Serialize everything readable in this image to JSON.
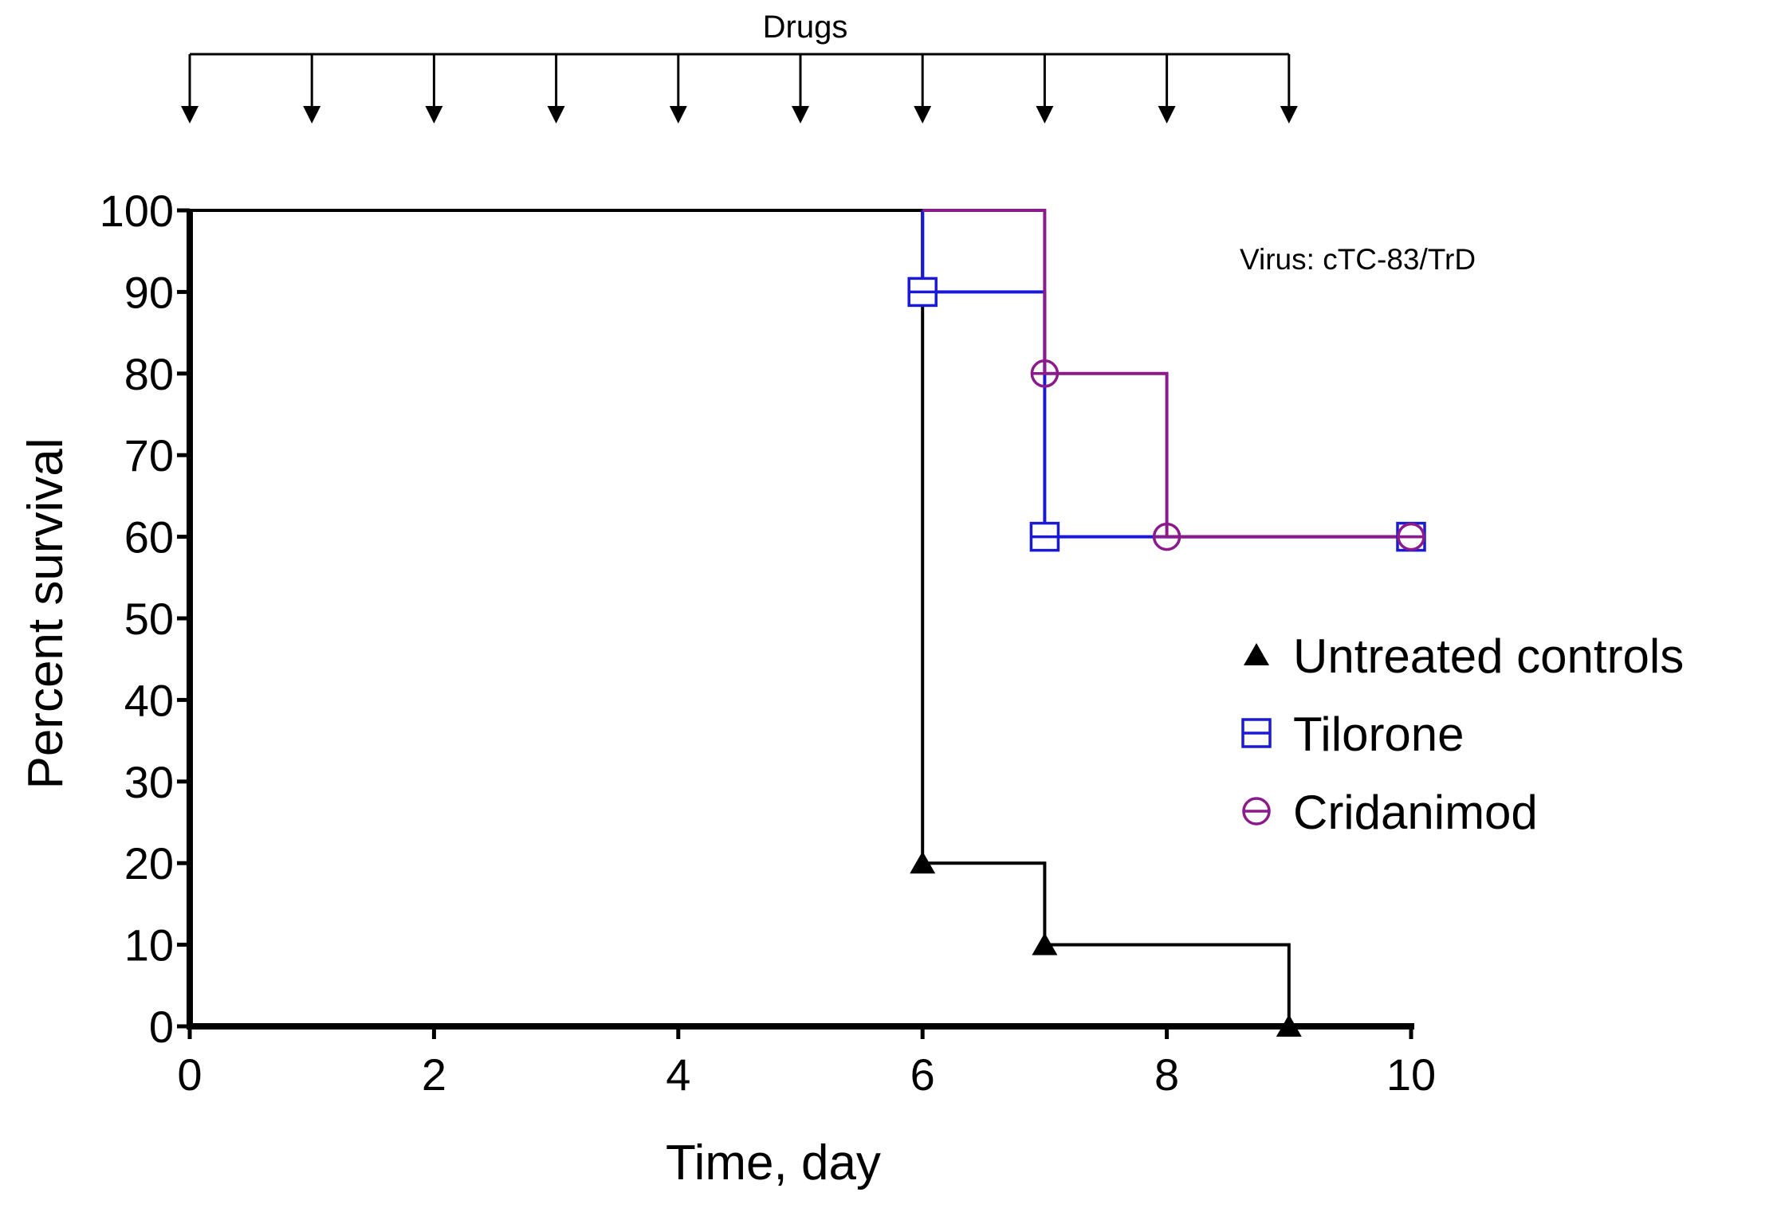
{
  "chart_data": {
    "type": "line",
    "subtype": "kaplan-meier-step",
    "title": "",
    "xlabel": "Time, day",
    "ylabel": "Percent survival",
    "xlim": [
      0,
      10
    ],
    "ylim": [
      0,
      100
    ],
    "x_ticks": [
      0,
      2,
      4,
      6,
      8,
      10
    ],
    "y_ticks": [
      0,
      10,
      20,
      30,
      40,
      50,
      60,
      70,
      80,
      90,
      100
    ],
    "grid": false,
    "annotation": "Virus: cTC-83/TrD",
    "drugs": {
      "label": "Drugs",
      "days": [
        0,
        1,
        2,
        3,
        4,
        5,
        6,
        7,
        8,
        9
      ]
    },
    "legend_position": "right-middle",
    "series": [
      {
        "name": "Untreated controls",
        "color": "#000000",
        "marker": "filled-triangle",
        "steps": [
          [
            0,
            100
          ],
          [
            6,
            100
          ],
          [
            6,
            20
          ],
          [
            7,
            20
          ],
          [
            7,
            10
          ],
          [
            9,
            10
          ],
          [
            9,
            0
          ],
          [
            10,
            0
          ]
        ],
        "markers": [
          [
            6,
            20
          ],
          [
            7,
            10
          ],
          [
            9,
            0
          ]
        ]
      },
      {
        "name": "Tilorone",
        "color": "#1a1ad6",
        "marker": "open-square",
        "steps": [
          [
            6,
            100
          ],
          [
            6,
            90
          ],
          [
            7,
            90
          ],
          [
            7,
            60
          ],
          [
            10,
            60
          ]
        ],
        "markers": [
          [
            6,
            90
          ],
          [
            7,
            60
          ],
          [
            10,
            60
          ]
        ]
      },
      {
        "name": "Cridanimod",
        "color": "#8b1a8b",
        "marker": "open-circle",
        "steps": [
          [
            6,
            100
          ],
          [
            7,
            100
          ],
          [
            7,
            80
          ],
          [
            8,
            80
          ],
          [
            8,
            60
          ],
          [
            10,
            60
          ]
        ],
        "markers": [
          [
            7,
            80
          ],
          [
            8,
            60
          ],
          [
            10,
            60
          ]
        ]
      }
    ]
  }
}
